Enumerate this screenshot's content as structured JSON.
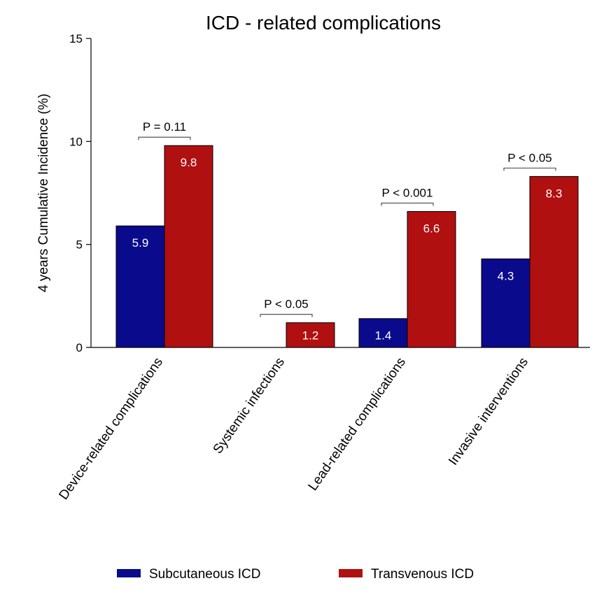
{
  "chart_data": {
    "type": "bar",
    "title": "ICD - related complications",
    "ylabel": "4 years Cumulative Incidence (%)",
    "xlabel": "",
    "ylim": [
      0,
      15
    ],
    "yticks": [
      0,
      5,
      10,
      15
    ],
    "grid": false,
    "legend_placement": "bottom",
    "categories": [
      "Device-related complications",
      "Systemic infections",
      "Lead-related complications",
      "Invasive interventions"
    ],
    "series": [
      {
        "name": "Subcutaneous ICD",
        "color": "#0a0a8c",
        "values": [
          5.9,
          0,
          1.4,
          4.3
        ],
        "labels": [
          "5.9",
          "",
          "1.4",
          "4.3"
        ]
      },
      {
        "name": "Transvenous ICD",
        "color": "#b01010",
        "values": [
          9.8,
          1.2,
          6.6,
          8.3
        ],
        "labels": [
          "9.8",
          "1.2",
          "6.6",
          "8.3"
        ]
      }
    ],
    "p_values": [
      "P = 0.11",
      "P < 0.05",
      "P < 0.001",
      "P < 0.05"
    ]
  }
}
